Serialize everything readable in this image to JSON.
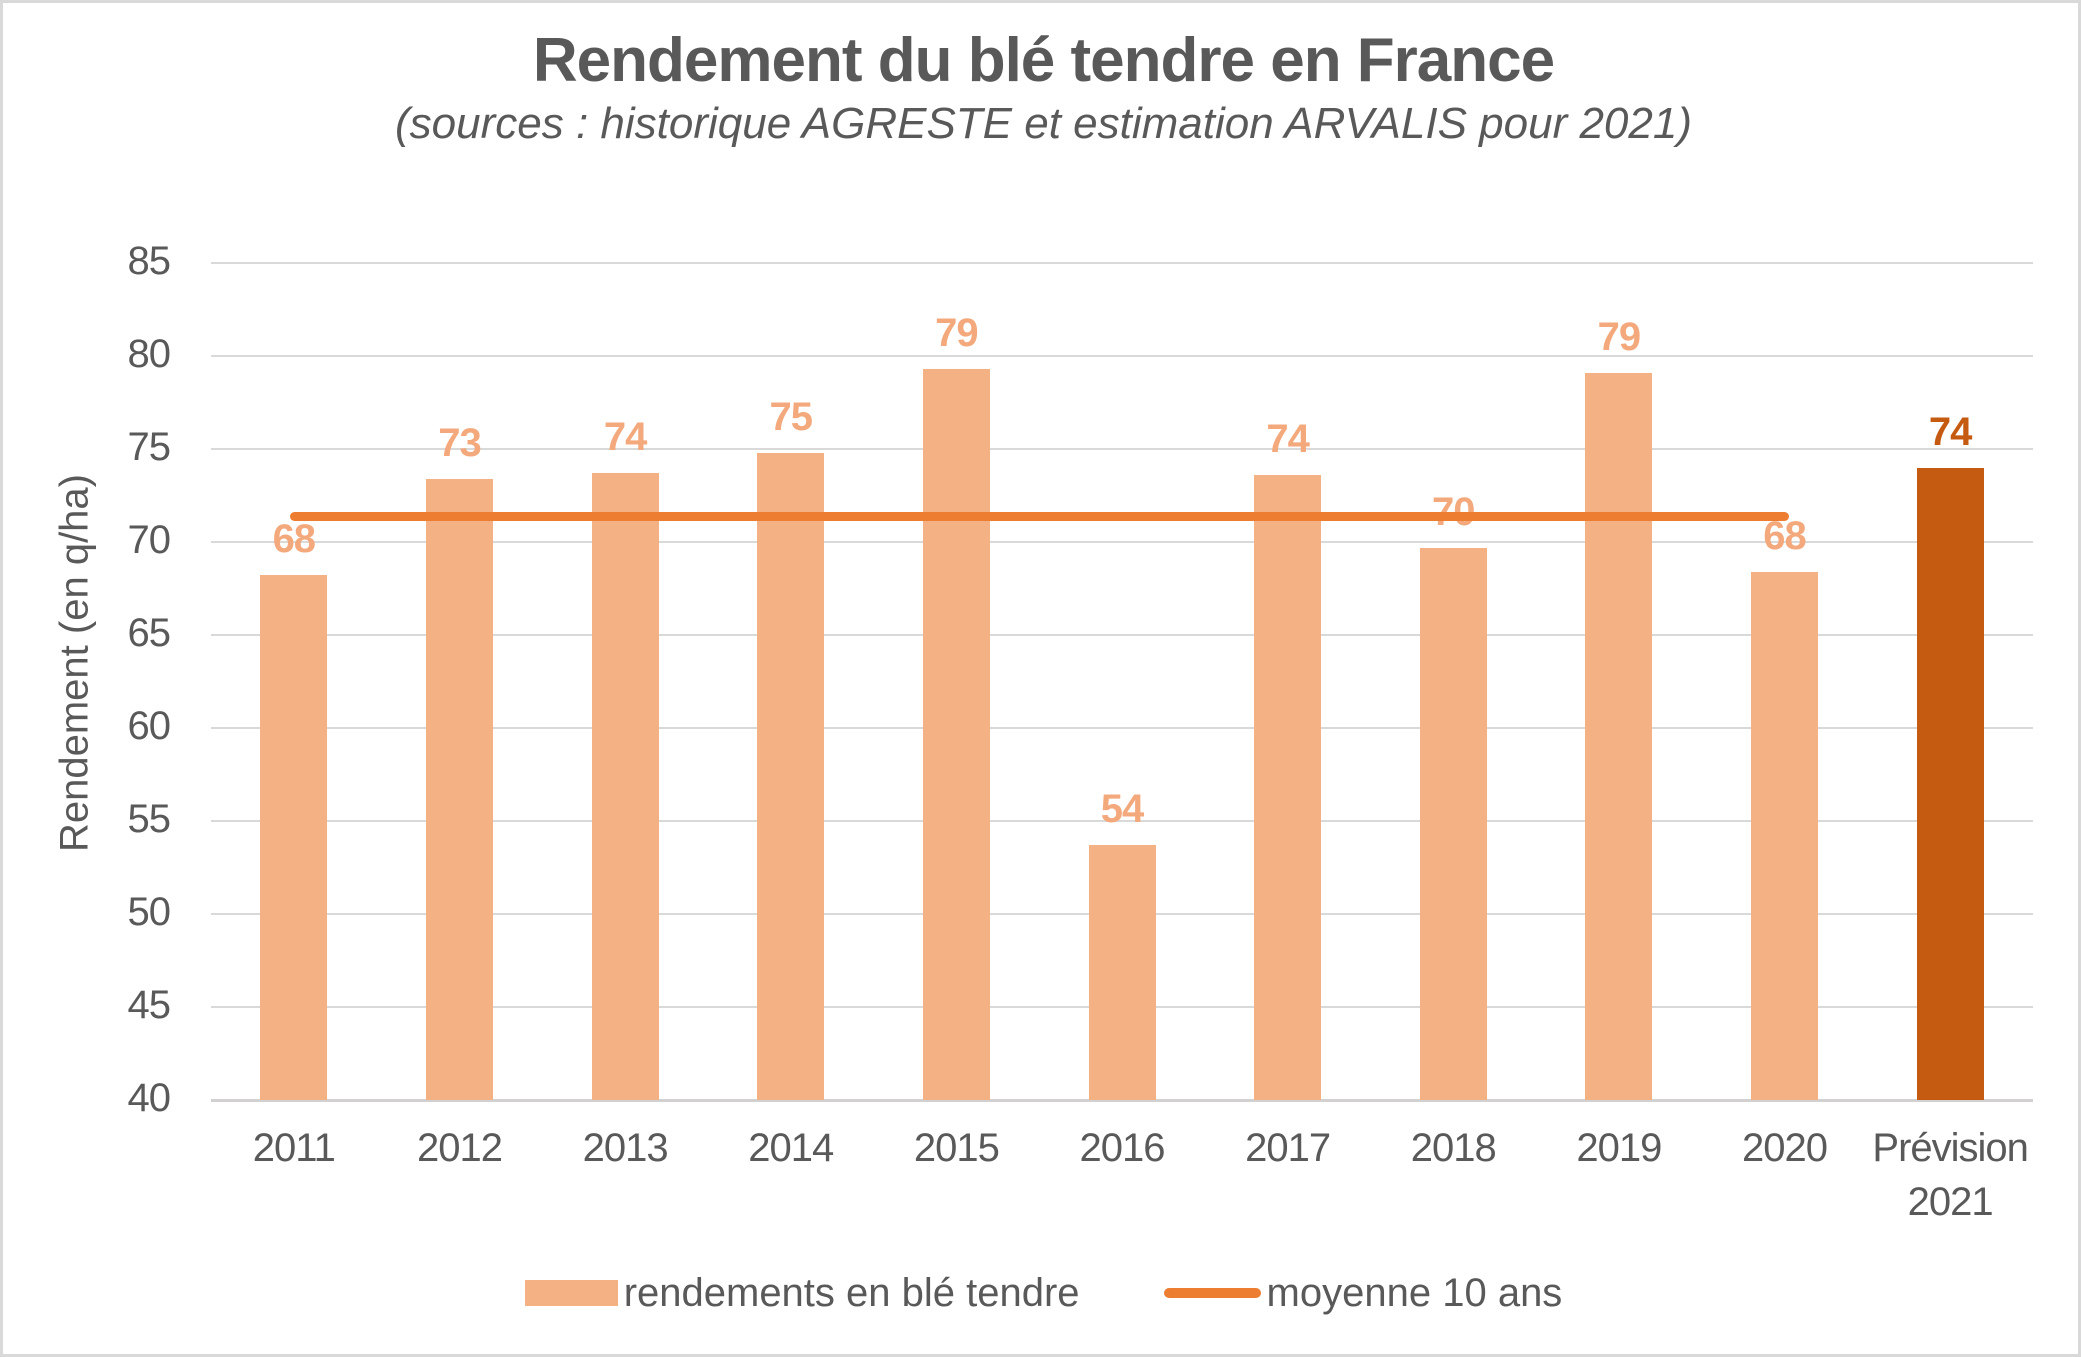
{
  "chart_data": {
    "type": "bar",
    "title": "Rendement du blé tendre en France",
    "subtitle": "(sources : historique AGRESTE et estimation ARVALIS pour 2021)",
    "ylabel": "Rendement (en q/ha)",
    "categories": [
      "2011",
      "2012",
      "2013",
      "2014",
      "2015",
      "2016",
      "2017",
      "2018",
      "2019",
      "2020",
      "Prévision 2021"
    ],
    "series": [
      {
        "name": "rendements en blé tendre",
        "type": "bar",
        "data_labels": [
          68,
          73,
          74,
          75,
          79,
          54,
          74,
          70,
          79,
          68,
          74
        ],
        "values_precise": [
          68.2,
          73.4,
          73.7,
          74.8,
          79.3,
          53.7,
          73.6,
          69.7,
          79.1,
          68.4,
          74.0
        ],
        "highlight_index": 10
      },
      {
        "name": "moyenne 10 ans",
        "type": "line",
        "value": 71.4,
        "span_categories": [
          "2011",
          "2020"
        ]
      }
    ],
    "ylim": [
      40,
      85
    ],
    "y_ticks": [
      85,
      80,
      75,
      70,
      65,
      60,
      55,
      50,
      45,
      40
    ],
    "grid": true,
    "legend_position": "bottom",
    "legend": [
      "rendements en blé tendre",
      "moyenne 10 ans"
    ],
    "colors": {
      "bar_light": "#f4b183",
      "bar_dark": "#c55a11",
      "label_light": "#f4a97c",
      "label_dark": "#c55a11",
      "average_line": "#ed7d31",
      "text": "#595959",
      "gridline": "#d9d9d9",
      "axis_line": "#d2d0d0"
    }
  }
}
